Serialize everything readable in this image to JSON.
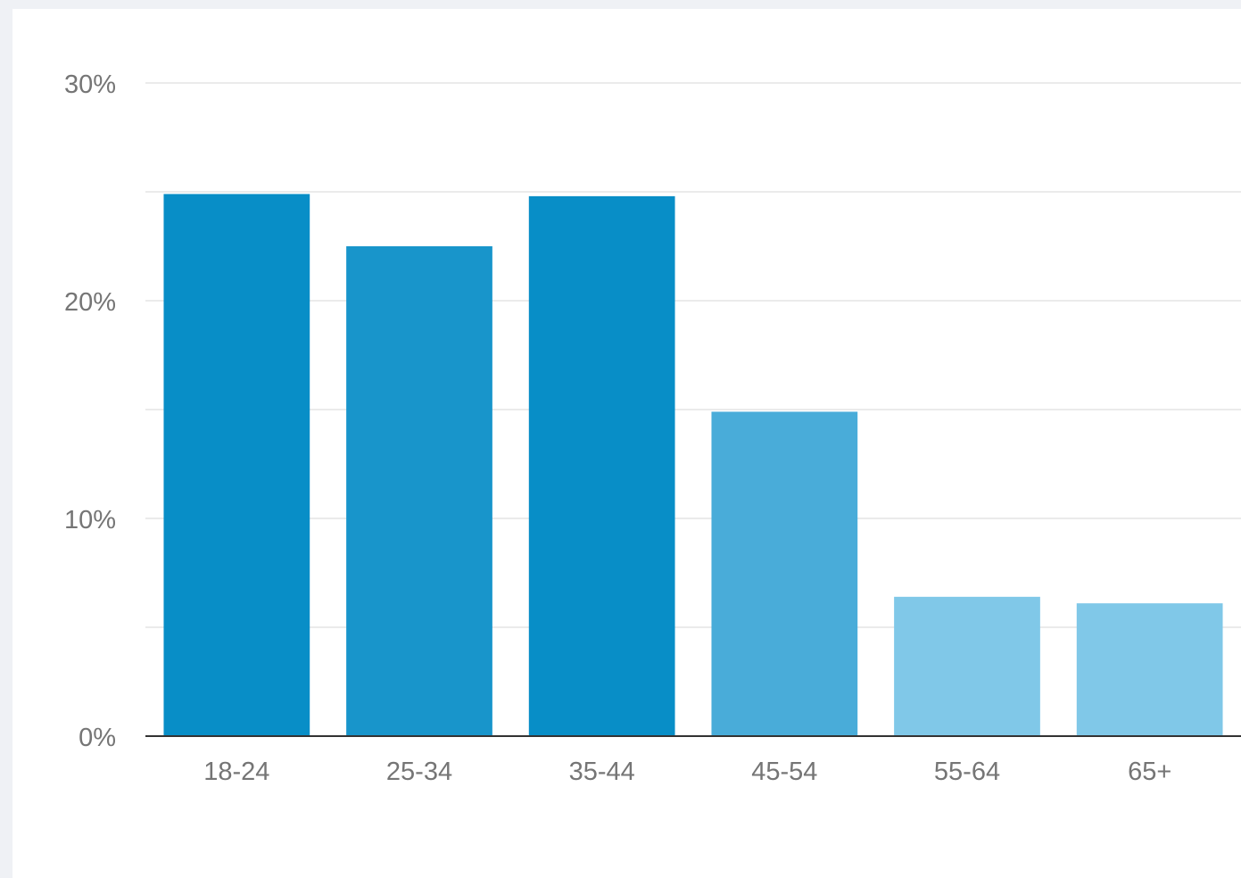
{
  "chart_data": {
    "type": "bar",
    "categories": [
      "18-24",
      "25-34",
      "35-44",
      "45-54",
      "55-64",
      "65+"
    ],
    "values": [
      24.9,
      22.5,
      24.8,
      14.9,
      6.4,
      6.1
    ],
    "ylim": [
      0,
      30
    ],
    "yticks": [
      0,
      10,
      20,
      30
    ],
    "ytick_labels": [
      "0%",
      "10%",
      "20%",
      "30%"
    ],
    "minor_gridlines": [
      5,
      15,
      25
    ],
    "grid": true,
    "bar_colors": [
      "#088ec7",
      "#1895cb",
      "#088ec7",
      "#49acd9",
      "#80c8e8",
      "#80c8e8"
    ],
    "gridline_color": "#ebebeb",
    "axis_color": "#333333",
    "title": "",
    "xlabel": "",
    "ylabel": ""
  }
}
